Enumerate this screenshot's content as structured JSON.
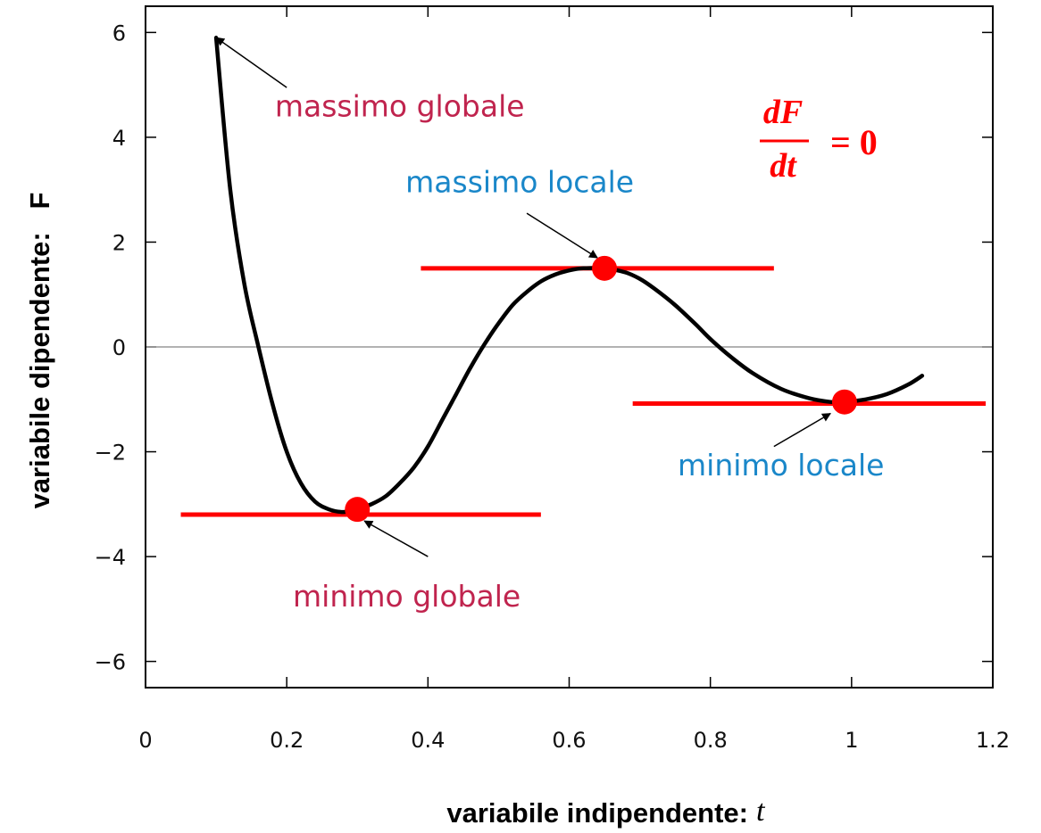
{
  "chart_data": {
    "type": "line",
    "x_ticks": [
      "0",
      "0.2",
      "0.4",
      "0.6",
      "0.8",
      "1",
      "1.2"
    ],
    "y_ticks": [
      "6",
      "4",
      "2",
      "0",
      "−2",
      "−4",
      "−6"
    ],
    "xlim": [
      0,
      1.2
    ],
    "ylim": [
      -6.5,
      6.5
    ],
    "zero_line": true,
    "grid": false,
    "xlabel": "variabile indipendente:",
    "xlabel_var": "t",
    "ylabel": "variabile dipendente:   F",
    "curve": {
      "x": [
        0.1,
        0.12,
        0.14,
        0.16,
        0.18,
        0.2,
        0.22,
        0.24,
        0.26,
        0.28,
        0.3,
        0.32,
        0.34,
        0.36,
        0.38,
        0.4,
        0.42,
        0.44,
        0.46,
        0.48,
        0.5,
        0.52,
        0.54,
        0.56,
        0.58,
        0.6,
        0.62,
        0.65,
        0.68,
        0.7,
        0.72,
        0.75,
        0.78,
        0.8,
        0.83,
        0.86,
        0.9,
        0.94,
        0.97,
        0.99,
        1.02,
        1.05,
        1.08,
        1.1
      ],
      "y": [
        5.9,
        3.0,
        1.2,
        0.0,
        -1.1,
        -2.0,
        -2.6,
        -2.95,
        -3.1,
        -3.15,
        -3.1,
        -3.0,
        -2.85,
        -2.6,
        -2.3,
        -1.9,
        -1.4,
        -0.9,
        -0.4,
        0.05,
        0.45,
        0.8,
        1.05,
        1.25,
        1.38,
        1.46,
        1.5,
        1.5,
        1.42,
        1.3,
        1.12,
        0.8,
        0.42,
        0.15,
        -0.2,
        -0.5,
        -0.8,
        -0.98,
        -1.05,
        -1.05,
        -1.0,
        -0.9,
        -0.72,
        -0.55
      ]
    },
    "critical_points": [
      {
        "x": 0.3,
        "y": -3.1
      },
      {
        "x": 0.65,
        "y": 1.5
      },
      {
        "x": 0.99,
        "y": -1.05
      }
    ],
    "tangent_lines": [
      {
        "y": -3.2,
        "x_from": 0.05,
        "x_to": 0.56
      },
      {
        "y": 1.5,
        "x_from": 0.39,
        "x_to": 0.89
      },
      {
        "y": -1.08,
        "x_from": 0.69,
        "x_to": 1.19
      }
    ],
    "annotations": [
      {
        "id": "massimo_globale",
        "text": "massimo globale",
        "color": "#c0244e",
        "text_at": [
          0.36,
          4.4
        ],
        "point": [
          0.1,
          5.9
        ],
        "arrow_tail": [
          0.2,
          4.95
        ]
      },
      {
        "id": "massimo_locale",
        "text": "massimo locale",
        "color": "#1a87c9",
        "text_at": [
          0.53,
          2.95
        ],
        "point": [
          0.64,
          1.7
        ],
        "arrow_tail": [
          0.54,
          2.55
        ]
      },
      {
        "id": "minimo_locale",
        "text": "minimo locale",
        "color": "#1a87c9",
        "text_at": [
          0.9,
          -2.45
        ],
        "point": [
          0.97,
          -1.27
        ],
        "arrow_tail": [
          0.89,
          -1.9
        ]
      },
      {
        "id": "minimo_globale",
        "text": "minimo globale",
        "color": "#c0244e",
        "text_at": [
          0.37,
          -4.95
        ],
        "point": [
          0.31,
          -3.32
        ],
        "arrow_tail": [
          0.4,
          -4.0
        ]
      }
    ],
    "formula": {
      "numerator": "dF",
      "denominator": "dt",
      "rhs": "= 0",
      "color": "#ff0000"
    },
    "colors": {
      "curve": "#000000",
      "marker": "#ff0000",
      "tangent": "#ff0000",
      "zero_line": "#999999"
    }
  }
}
